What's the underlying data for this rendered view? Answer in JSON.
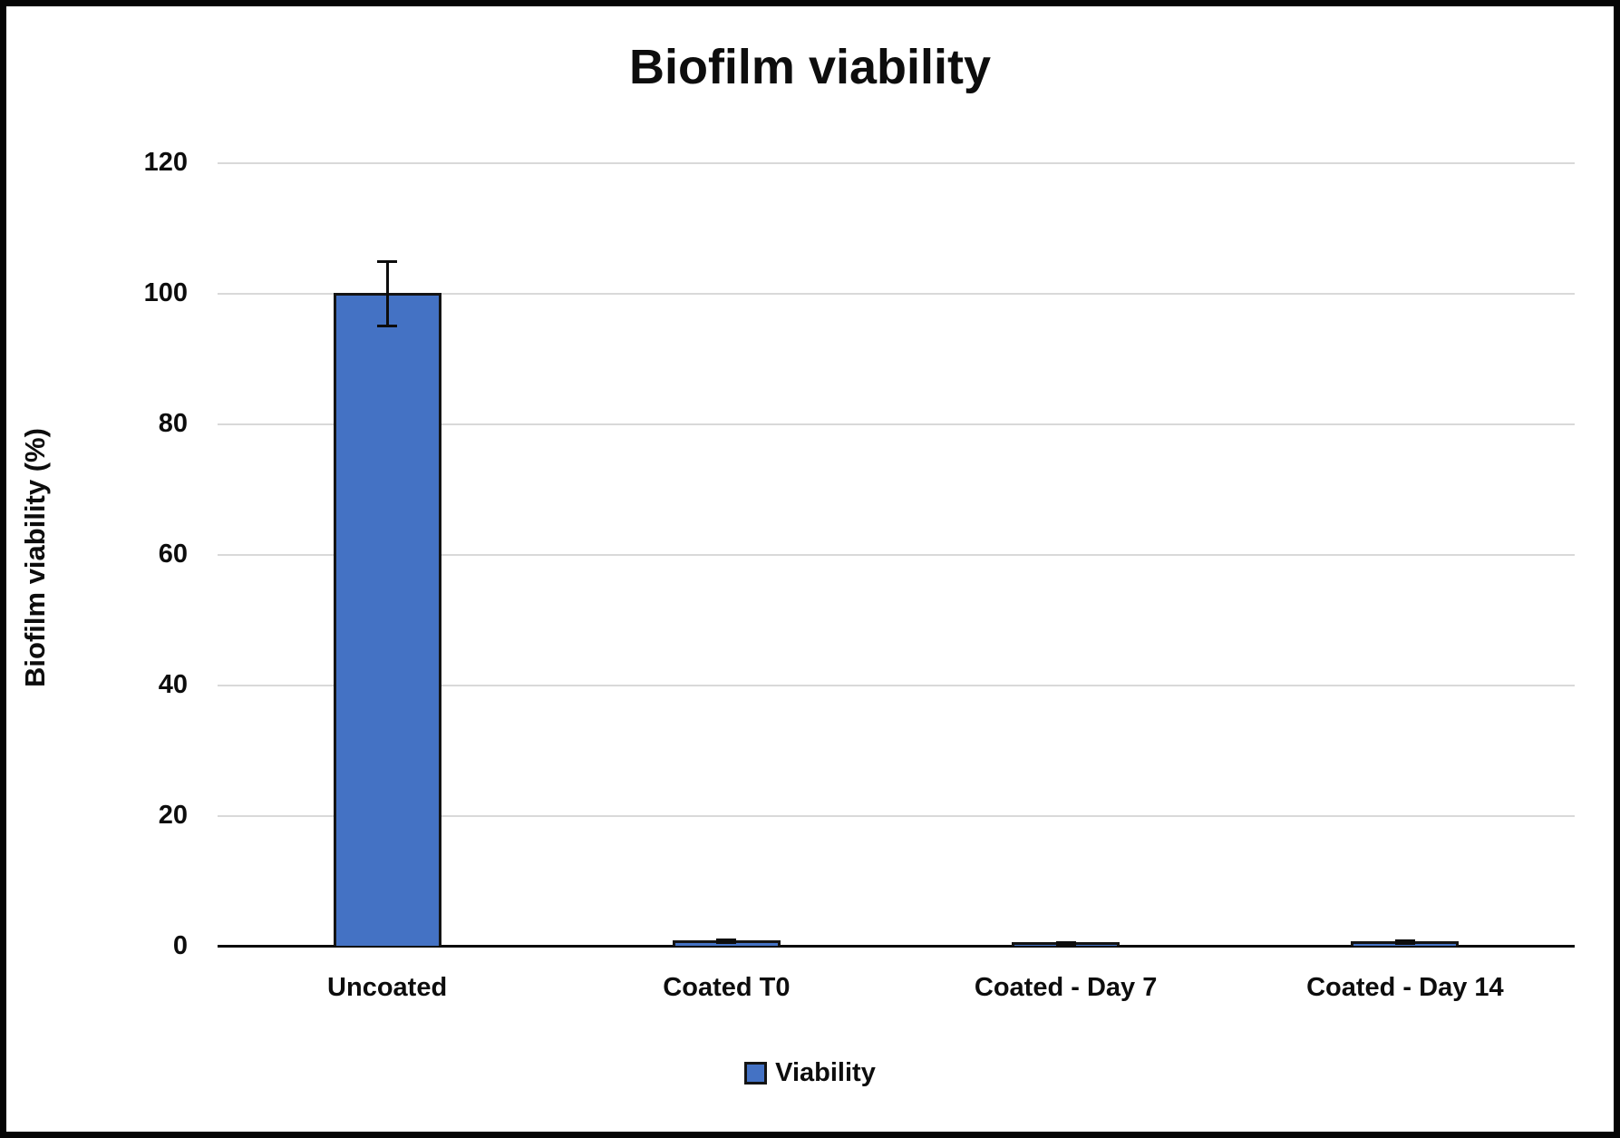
{
  "chart_data": {
    "type": "bar",
    "title": "Biofilm viability",
    "xlabel": "",
    "ylabel": "Biofilm viability (%)",
    "categories": [
      "Uncoated",
      "Coated T0",
      "Coated - Day 7",
      "Coated - Day 14"
    ],
    "series": [
      {
        "name": "Viability",
        "values": [
          100,
          0.8,
          0.5,
          0.7
        ],
        "error_bars": [
          5,
          0.3,
          0.2,
          0.25
        ],
        "fill_color": "#4472C4",
        "border_color": "#141414"
      }
    ],
    "ylim": [
      0,
      120
    ],
    "ytick_step": 20,
    "yticks": [
      0,
      20,
      40,
      60,
      80,
      100,
      120
    ],
    "grid": true,
    "gridline_color": "#d9d9d9",
    "axis_color": "#0d0d0d",
    "legend_position": "bottom"
  }
}
